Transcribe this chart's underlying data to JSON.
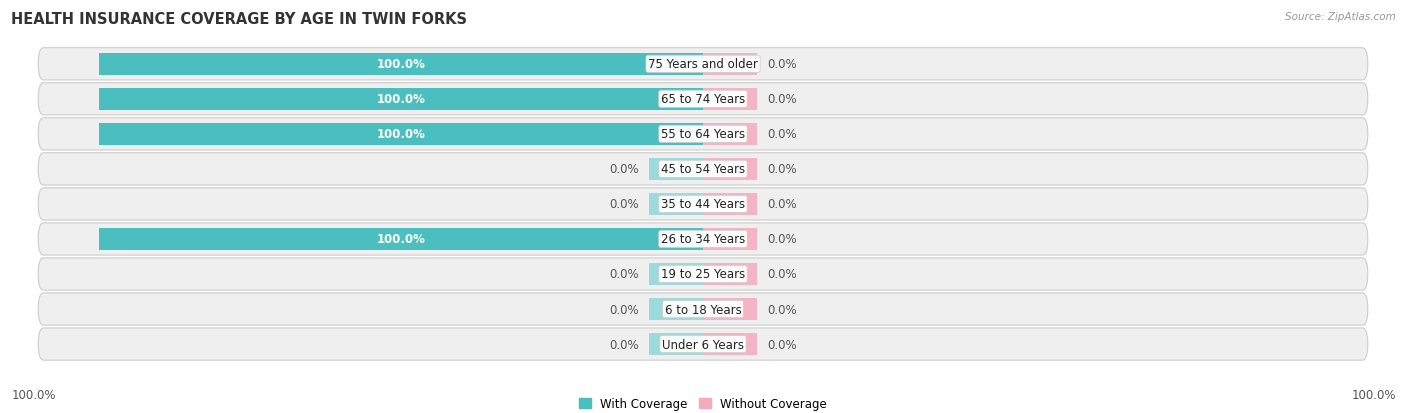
{
  "title": "HEALTH INSURANCE COVERAGE BY AGE IN TWIN FORKS",
  "source": "Source: ZipAtlas.com",
  "categories": [
    "Under 6 Years",
    "6 to 18 Years",
    "19 to 25 Years",
    "26 to 34 Years",
    "35 to 44 Years",
    "45 to 54 Years",
    "55 to 64 Years",
    "65 to 74 Years",
    "75 Years and older"
  ],
  "with_coverage": [
    0.0,
    0.0,
    0.0,
    100.0,
    0.0,
    0.0,
    100.0,
    100.0,
    100.0
  ],
  "without_coverage": [
    0.0,
    0.0,
    0.0,
    0.0,
    0.0,
    0.0,
    0.0,
    0.0,
    0.0
  ],
  "color_with": "#4BBFBF",
  "color_with_stub": "#8ED8D8",
  "color_without": "#F5AABE",
  "color_without_stub": "#F5AABE",
  "bar_height": 0.62,
  "row_bg_color": "#EFEFEF",
  "row_bg_gap": "#FFFFFF",
  "title_fontsize": 10.5,
  "label_fontsize": 8.5,
  "category_fontsize": 8.5,
  "legend_with": "With Coverage",
  "legend_without": "Without Coverage",
  "x_left_label": "100.0%",
  "x_right_label": "100.0%",
  "stub_size": 4.5,
  "full_size": 50.0,
  "xlim_left": -57,
  "xlim_right": 57
}
